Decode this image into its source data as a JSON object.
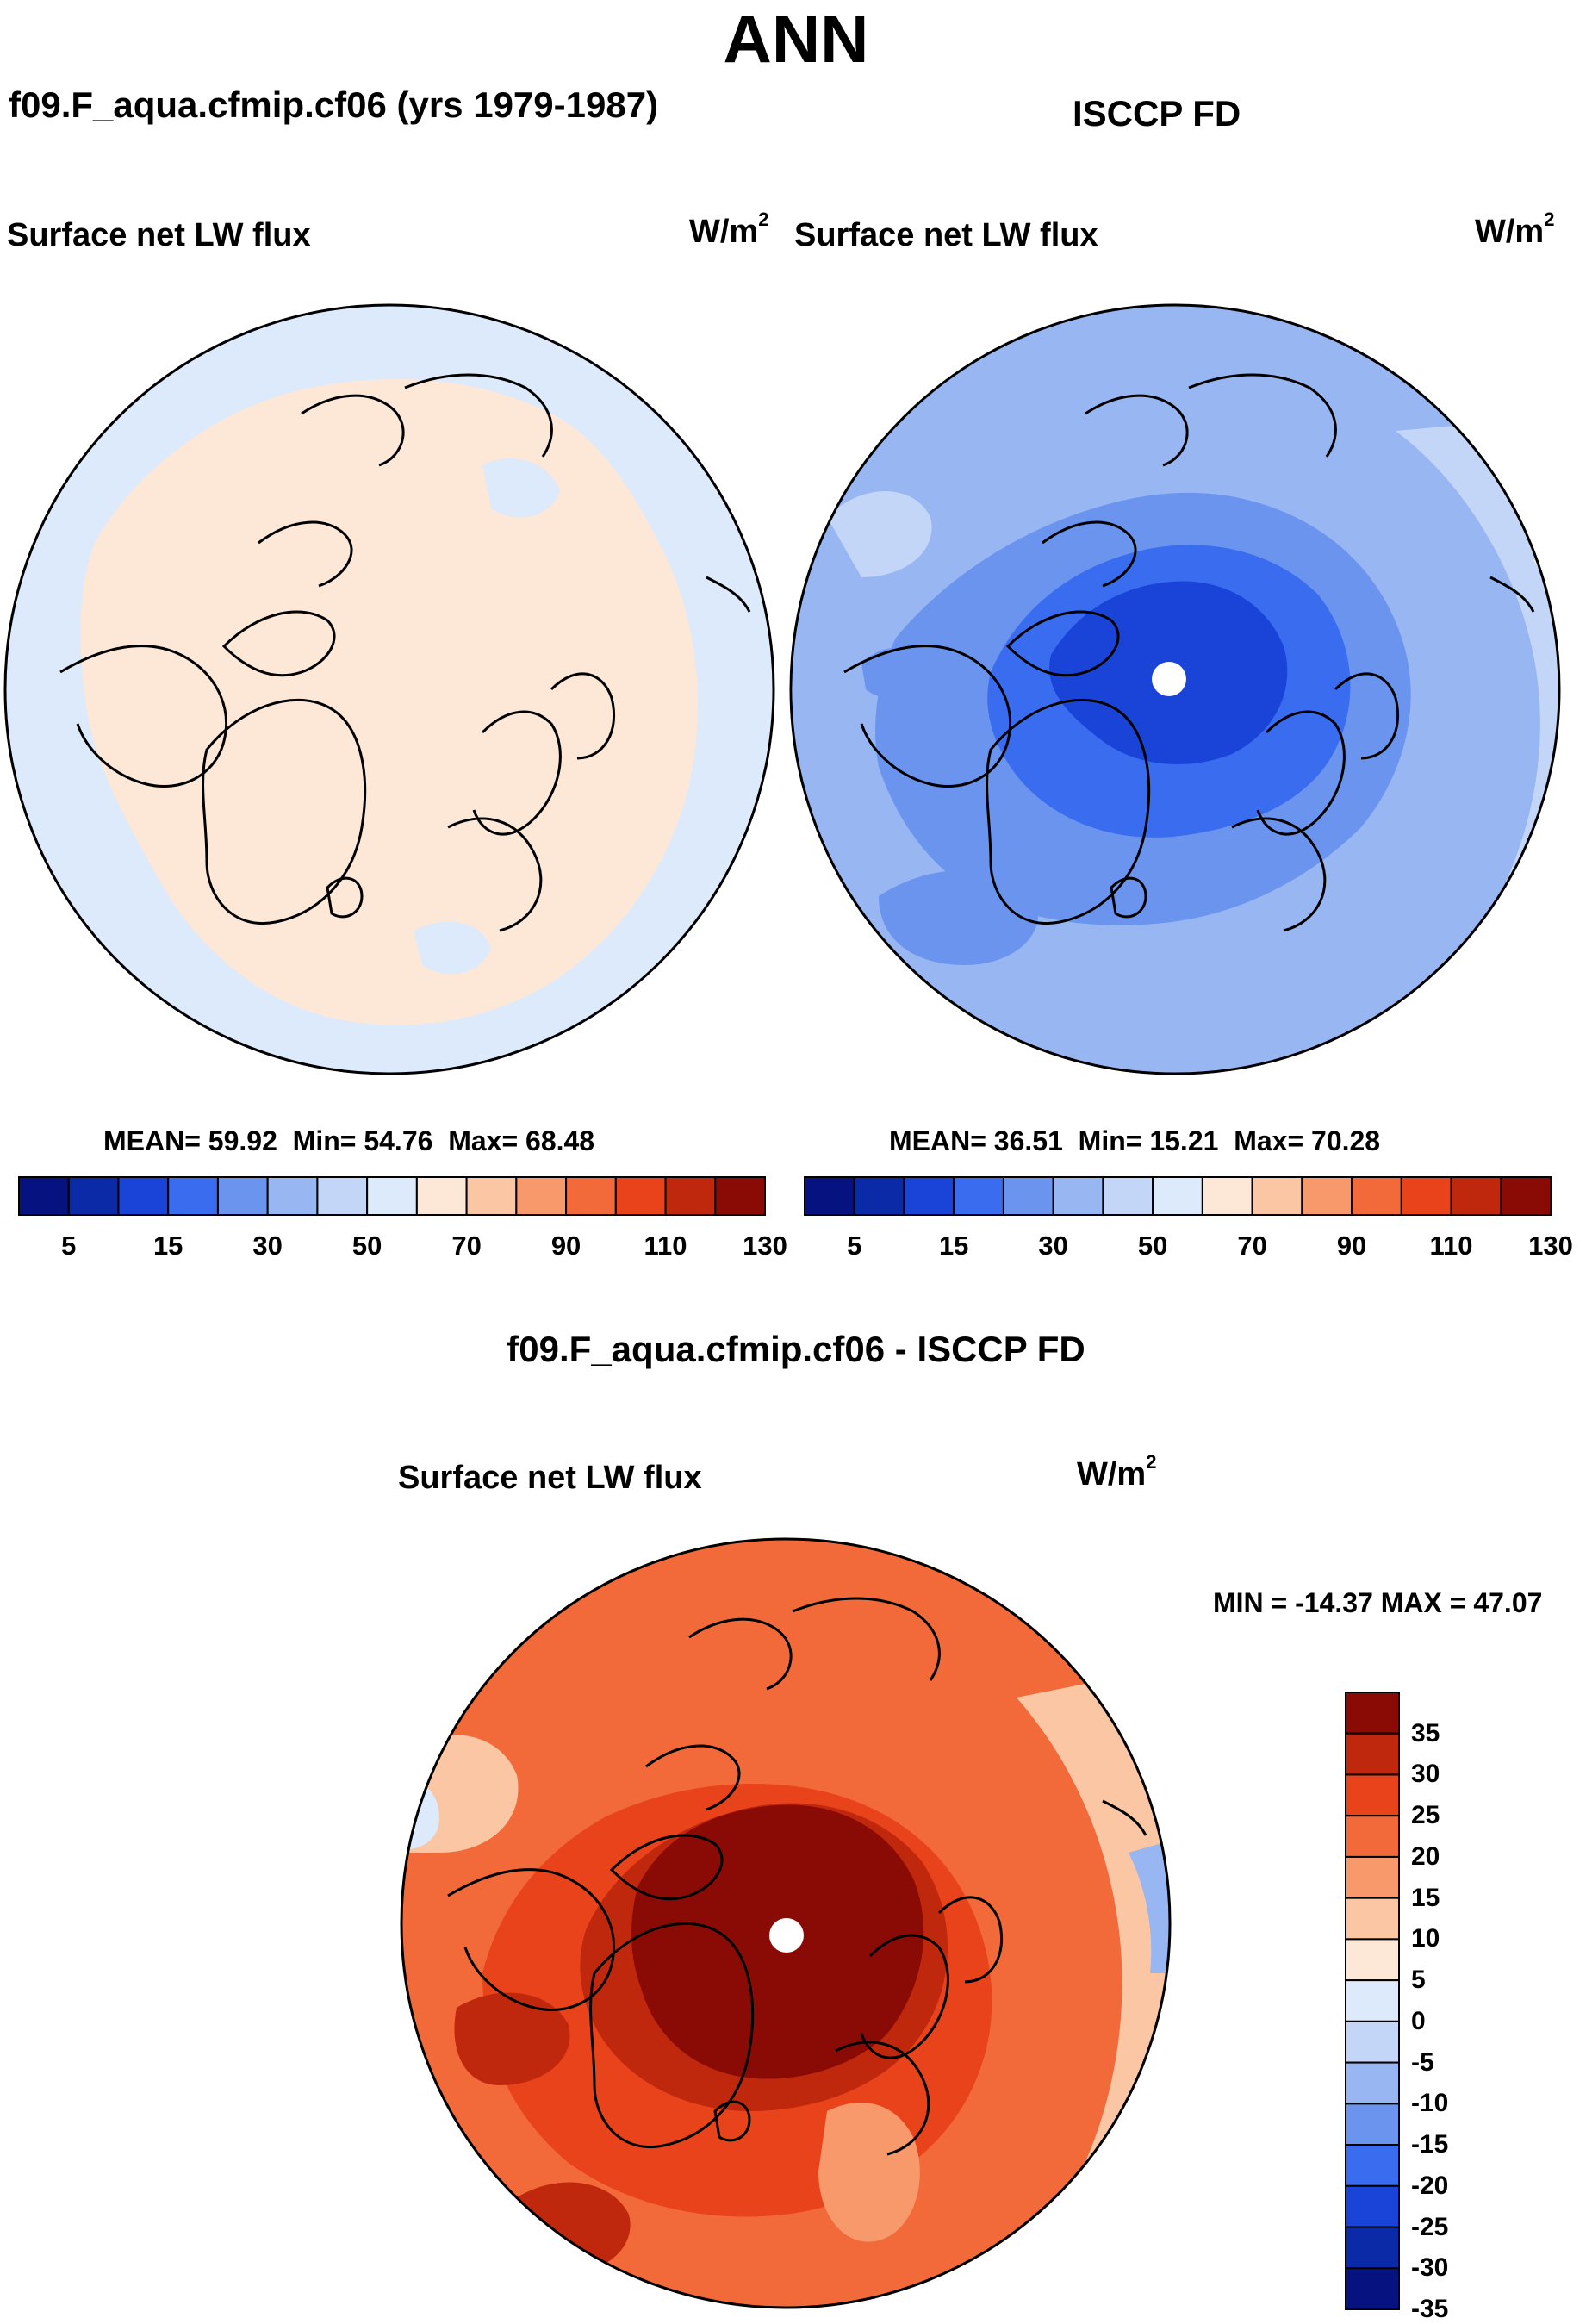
{
  "title": "ANN",
  "panels": {
    "model": {
      "case": "f09.F_aqua.cfmip.cf06 (yrs 1979-1987)",
      "variable": "Surface net LW flux",
      "units": "W/m",
      "units_exp": "2",
      "stats": {
        "mean_label": "MEAN=",
        "mean": "59.92",
        "min_label": "Min=",
        "min": "54.76",
        "max_label": "Max=",
        "max": "68.48"
      }
    },
    "obs": {
      "case": "ISCCP FD",
      "variable": "Surface net LW flux",
      "units": "W/m",
      "units_exp": "2",
      "stats": {
        "mean_label": "MEAN=",
        "mean": "36.51",
        "min_label": "Min=",
        "min": "15.21",
        "max_label": "Max=",
        "max": "70.28"
      }
    },
    "diff": {
      "case": "f09.F_aqua.cfmip.cf06 - ISCCP FD",
      "variable": "Surface net LW flux",
      "units": "W/m",
      "units_exp": "2",
      "minmax": "MIN = -14.37 MAX =  47.07"
    }
  },
  "colorbars": {
    "main": {
      "colors": [
        "#061280",
        "#0a2aa8",
        "#1a44d8",
        "#3a6cf0",
        "#6a94ee",
        "#97b6f2",
        "#c4d6f8",
        "#dceafc",
        "#fde8d8",
        "#fbc6a4",
        "#f7996a",
        "#f26a3a",
        "#e8431a",
        "#c0280e",
        "#8a0a06"
      ],
      "ticks": [
        "5",
        "15",
        "30",
        "50",
        "70",
        "90",
        "110",
        "130"
      ]
    },
    "diff": {
      "colors": [
        "#8a0a06",
        "#c0280e",
        "#e8431a",
        "#f26a3a",
        "#f7996a",
        "#fbc6a4",
        "#fde8d8",
        "#dceafc",
        "#c4d6f8",
        "#97b6f2",
        "#6a94ee",
        "#3a6cf0",
        "#1a44d8",
        "#0a2aa8",
        "#061280"
      ],
      "ticks": [
        "35",
        "30",
        "25",
        "20",
        "15",
        "10",
        "5",
        "0",
        "-5",
        "-10",
        "-15",
        "-20",
        "-25",
        "-30",
        "-35"
      ]
    }
  },
  "map_fills": {
    "model": {
      "ocean": "#dceafc",
      "interior": "#fde8d8"
    },
    "obs": {
      "outer": "#97b6f2",
      "mid": "#6a94ee",
      "inner": "#3a6cf0",
      "core": "#1a44d8",
      "edge": "#c4d6f8",
      "warm": "#fde8d8"
    },
    "diff": {
      "outer": "#f26a3a",
      "mid": "#e8431a",
      "inner": "#c0280e",
      "core": "#8a0a06",
      "light": "#f7996a",
      "pale": "#fbc6a4",
      "cool": "#97b6f2"
    }
  }
}
